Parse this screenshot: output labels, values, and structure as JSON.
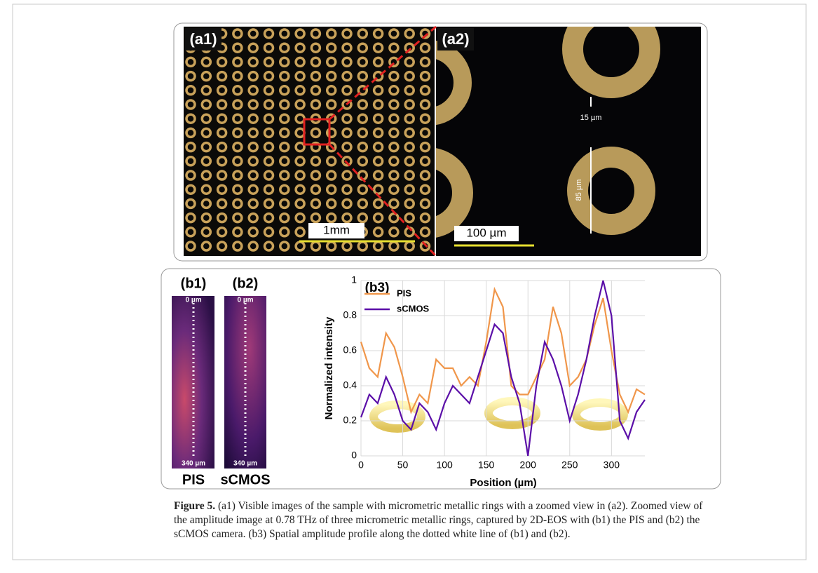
{
  "panel_a": {
    "a1_label": "(a1)",
    "a1_scale": "1mm",
    "a2_label": "(a2)",
    "a2_scale": "100 µm",
    "a2_gap": "15 µm",
    "a2_diameter": "85 µm"
  },
  "panel_b": {
    "b1_label": "(b1)",
    "b2_label": "(b2)",
    "b1_top": "0 µm",
    "b1_bottom": "340 µm",
    "b2_top": "0 µm",
    "b2_bottom": "340 µm",
    "b1_name": "PIS",
    "b2_name": "sCMOS"
  },
  "chart_data": {
    "type": "line",
    "annotation": "(b3)",
    "x_label": "Position (µm)",
    "y_label": "Normalized intensity",
    "x": [
      0,
      10,
      20,
      30,
      40,
      50,
      60,
      70,
      80,
      90,
      100,
      110,
      120,
      130,
      140,
      150,
      160,
      170,
      180,
      190,
      200,
      210,
      220,
      230,
      240,
      250,
      260,
      270,
      280,
      290,
      300,
      310,
      320,
      330,
      340
    ],
    "series": [
      {
        "name": "PIS",
        "color": "#f0964a",
        "values": [
          0.65,
          0.5,
          0.45,
          0.7,
          0.62,
          0.45,
          0.25,
          0.35,
          0.3,
          0.55,
          0.5,
          0.5,
          0.4,
          0.45,
          0.4,
          0.65,
          0.95,
          0.85,
          0.4,
          0.35,
          0.35,
          0.45,
          0.55,
          0.85,
          0.7,
          0.4,
          0.45,
          0.55,
          0.75,
          0.9,
          0.6,
          0.35,
          0.25,
          0.38,
          0.35
        ]
      },
      {
        "name": "sCMOS",
        "color": "#5b0fa8",
        "values": [
          0.22,
          0.35,
          0.3,
          0.45,
          0.35,
          0.2,
          0.15,
          0.3,
          0.25,
          0.15,
          0.3,
          0.4,
          0.35,
          0.3,
          0.45,
          0.6,
          0.75,
          0.7,
          0.45,
          0.3,
          0.0,
          0.4,
          0.65,
          0.55,
          0.4,
          0.2,
          0.35,
          0.55,
          0.8,
          1.0,
          0.8,
          0.2,
          0.1,
          0.25,
          0.32
        ]
      }
    ],
    "xlim": [
      0,
      340
    ],
    "ylim": [
      0,
      1
    ],
    "xticks": [
      0,
      50,
      100,
      150,
      200,
      250,
      300
    ],
    "yticks": [
      0,
      0.2,
      0.4,
      0.6,
      0.8,
      1
    ],
    "grid": true,
    "legend": "top-left"
  },
  "caption": {
    "label": "Figure 5.",
    "text": " (a1) Visible images of the sample with micrometric metallic rings with a zoomed view in (a2). Zoomed view of the amplitude image at 0.78 THz of three micrometric metallic rings, captured by 2D-EOS with (b1) the PIS and (b2) the sCMOS camera. (b3) Spatial amplitude profile along the dotted white line of (b1) and (b2)."
  }
}
